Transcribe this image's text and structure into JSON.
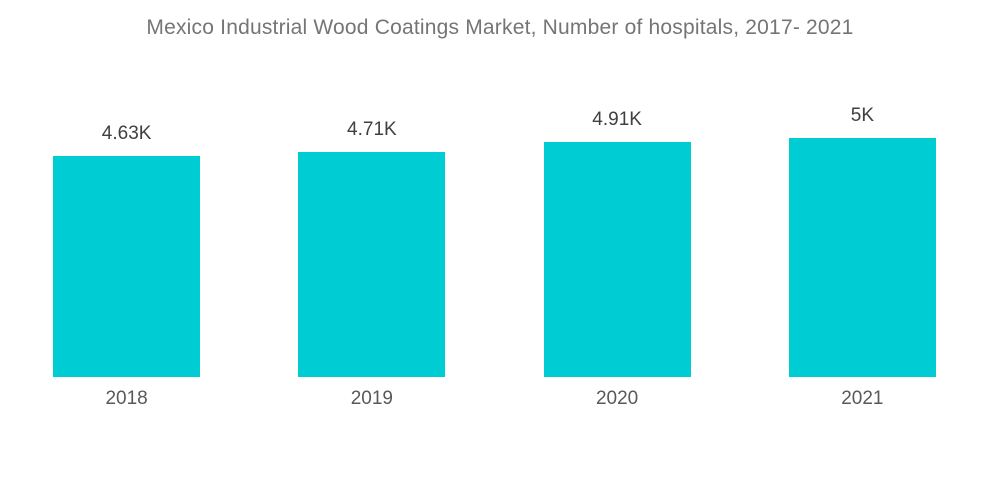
{
  "title": "Mexico Industrial Wood Coatings Market, Number of hospitals, 2017- 2021",
  "colors": {
    "background": "#FFFFFF",
    "bar": "#00CCD3",
    "title_text": "#757575",
    "value_label_text": "#404040",
    "year_label_text": "#595959"
  },
  "chart_data": {
    "type": "bar",
    "title": "Mexico Industrial Wood Coatings Market, Number of hospitals, 2017- 2021",
    "categories": [
      "2018",
      "2019",
      "2020",
      "2021"
    ],
    "values": [
      4630,
      4710,
      4910,
      5000
    ],
    "value_labels": [
      "4.63K",
      "4.71K",
      "4.91K",
      "5K"
    ],
    "xlabel": "",
    "ylabel": "",
    "ylim": [
      0,
      5000
    ],
    "grid": false,
    "legend": "none",
    "data_labels_position": "above-bar",
    "category_labels_position": "below-bar"
  }
}
